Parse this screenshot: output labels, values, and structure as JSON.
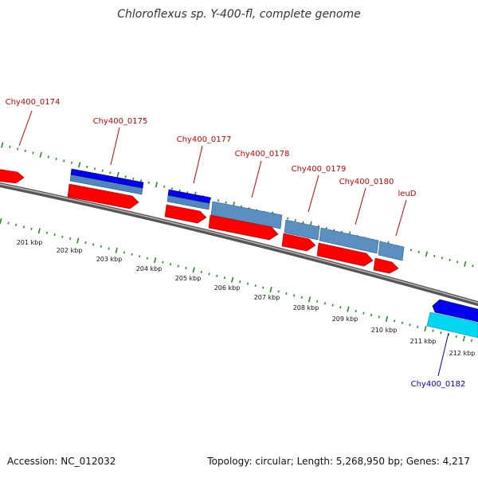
{
  "title": "Chloroflexus sp. Y-400-fl, complete genome",
  "footer": {
    "accession": "Accession: NC_012032",
    "topology": "Topology: circular; Length: 5,268,950 bp; Genes: 4,217"
  },
  "colors": {
    "forward_cds": "#ff0000",
    "reverse_cds": "#0000ee",
    "forward_gene": "#4f86bd",
    "reverse_gene": "#00d8f0",
    "label_forward": "#cc0000",
    "label_reverse": "#0000cc",
    "backbone": "#7c7c7c",
    "ticks": "#2a8a2a"
  },
  "kbp_labels": [
    "201 kbp",
    "202 kbp",
    "203 kbp",
    "204 kbp",
    "205 kbp",
    "206 kbp",
    "207 kbp",
    "208 kbp",
    "209 kbp",
    "210 kbp",
    "211 kbp",
    "212 kbp"
  ],
  "gene_labels": [
    {
      "text": "Chy400_0174",
      "strand": "forward"
    },
    {
      "text": "Chy400_0175",
      "strand": "forward"
    },
    {
      "text": "Chy400_0177",
      "strand": "forward"
    },
    {
      "text": "Chy400_0178",
      "strand": "forward"
    },
    {
      "text": "Chy400_0179",
      "strand": "forward"
    },
    {
      "text": "Chy400_0180",
      "strand": "forward"
    },
    {
      "text": "leuD",
      "strand": "forward"
    },
    {
      "text": "Chy400_0182",
      "strand": "reverse"
    }
  ]
}
